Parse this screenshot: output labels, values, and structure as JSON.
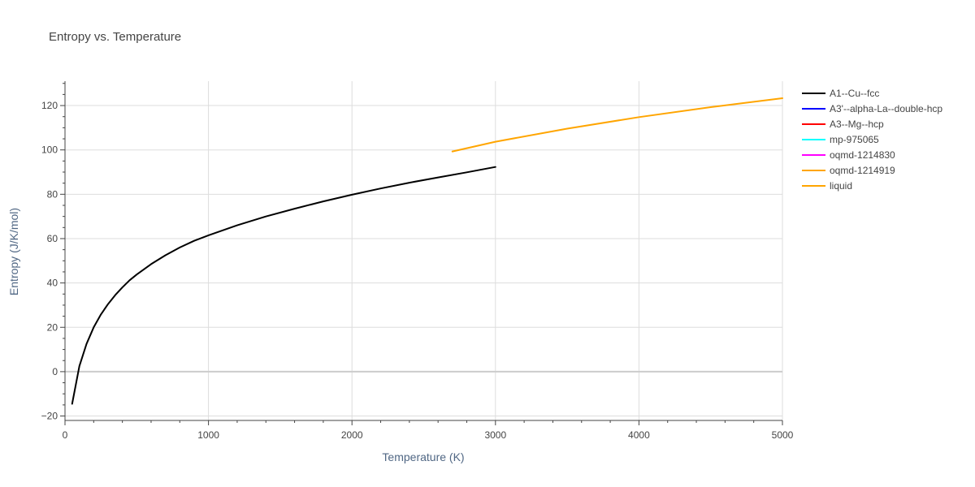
{
  "chart_data": {
    "type": "line",
    "title": "Entropy vs. Temperature",
    "xlabel": "Temperature (K)",
    "ylabel": "Entropy (J/K/mol)",
    "xlim": [
      0,
      5000
    ],
    "ylim": [
      -22,
      131
    ],
    "x_ticks": [
      0,
      1000,
      2000,
      3000,
      4000,
      5000
    ],
    "x_tick_labels": [
      "0",
      "1000",
      "2000",
      "3000",
      "4000",
      "5000"
    ],
    "y_ticks": [
      -20,
      0,
      20,
      40,
      60,
      80,
      100,
      120
    ],
    "y_tick_labels": [
      "−20",
      "0",
      "20",
      "40",
      "60",
      "80",
      "100",
      "120"
    ],
    "grid": true,
    "legend_position": "right",
    "series": [
      {
        "name": "A1--Cu--fcc",
        "color": "#000000",
        "x": [
          50,
          100,
          150,
          200,
          250,
          300,
          350,
          400,
          450,
          500,
          600,
          700,
          800,
          900,
          1000,
          1200,
          1400,
          1600,
          1800,
          2000,
          2200,
          2400,
          2600,
          2800,
          3000
        ],
        "y": [
          -14.5,
          2.5,
          12.5,
          20,
          25.8,
          30.5,
          34.5,
          38,
          41.2,
          43.8,
          48.5,
          52.5,
          56,
          59,
          61.5,
          66,
          70,
          73.5,
          76.8,
          79.8,
          82.6,
          85.2,
          87.6,
          89.9,
          92.3
        ]
      },
      {
        "name": "A3'--alpha-La--double-hcp",
        "color": "#0000ff",
        "x": [],
        "y": []
      },
      {
        "name": "A3--Mg--hcp",
        "color": "#ff0000",
        "x": [],
        "y": []
      },
      {
        "name": "mp-975065",
        "color": "#00ffff",
        "x": [],
        "y": []
      },
      {
        "name": "oqmd-1214830",
        "color": "#ff00ff",
        "x": [],
        "y": []
      },
      {
        "name": "oqmd-1214919",
        "color": "#ffa500",
        "x": [],
        "y": []
      },
      {
        "name": "liquid",
        "color": "#ffa500",
        "x": [
          2700,
          3000,
          3500,
          4000,
          4500,
          5000
        ],
        "y": [
          99.3,
          103.7,
          109.6,
          114.8,
          119.3,
          123.3
        ]
      }
    ]
  }
}
